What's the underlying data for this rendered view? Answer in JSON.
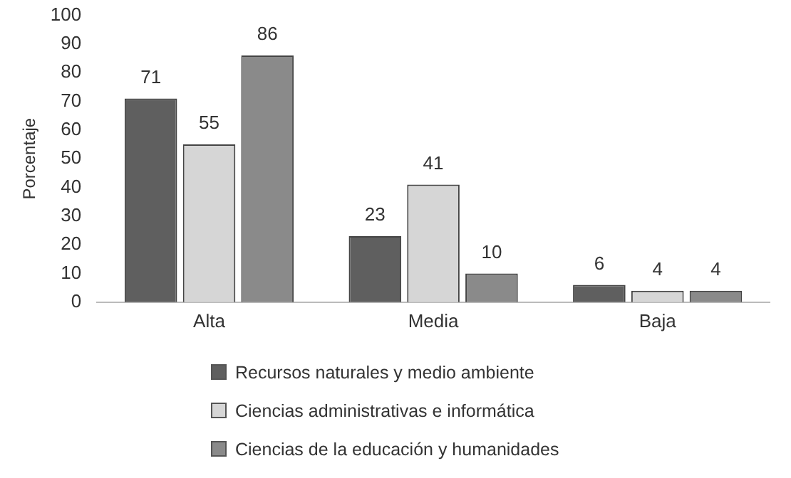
{
  "chart_data": {
    "type": "bar",
    "ylabel": "Porcentaje",
    "categories": [
      "Alta",
      "Media",
      "Baja"
    ],
    "series": [
      {
        "name": "Recursos naturales y medio ambiente",
        "color": "#5f5f5f",
        "values": [
          71,
          23,
          6
        ]
      },
      {
        "name": "Ciencias administrativas e informática",
        "color": "#d6d6d6",
        "values": [
          55,
          41,
          4
        ]
      },
      {
        "name": "Ciencias de la educación y humanidades",
        "color": "#8a8a8a",
        "values": [
          86,
          10,
          4
        ]
      }
    ],
    "ylim": [
      0,
      100
    ],
    "yticks": [
      0,
      10,
      20,
      30,
      40,
      50,
      60,
      70,
      80,
      90,
      100
    ],
    "grid": false,
    "legend": "bottom",
    "data_labels": true
  }
}
